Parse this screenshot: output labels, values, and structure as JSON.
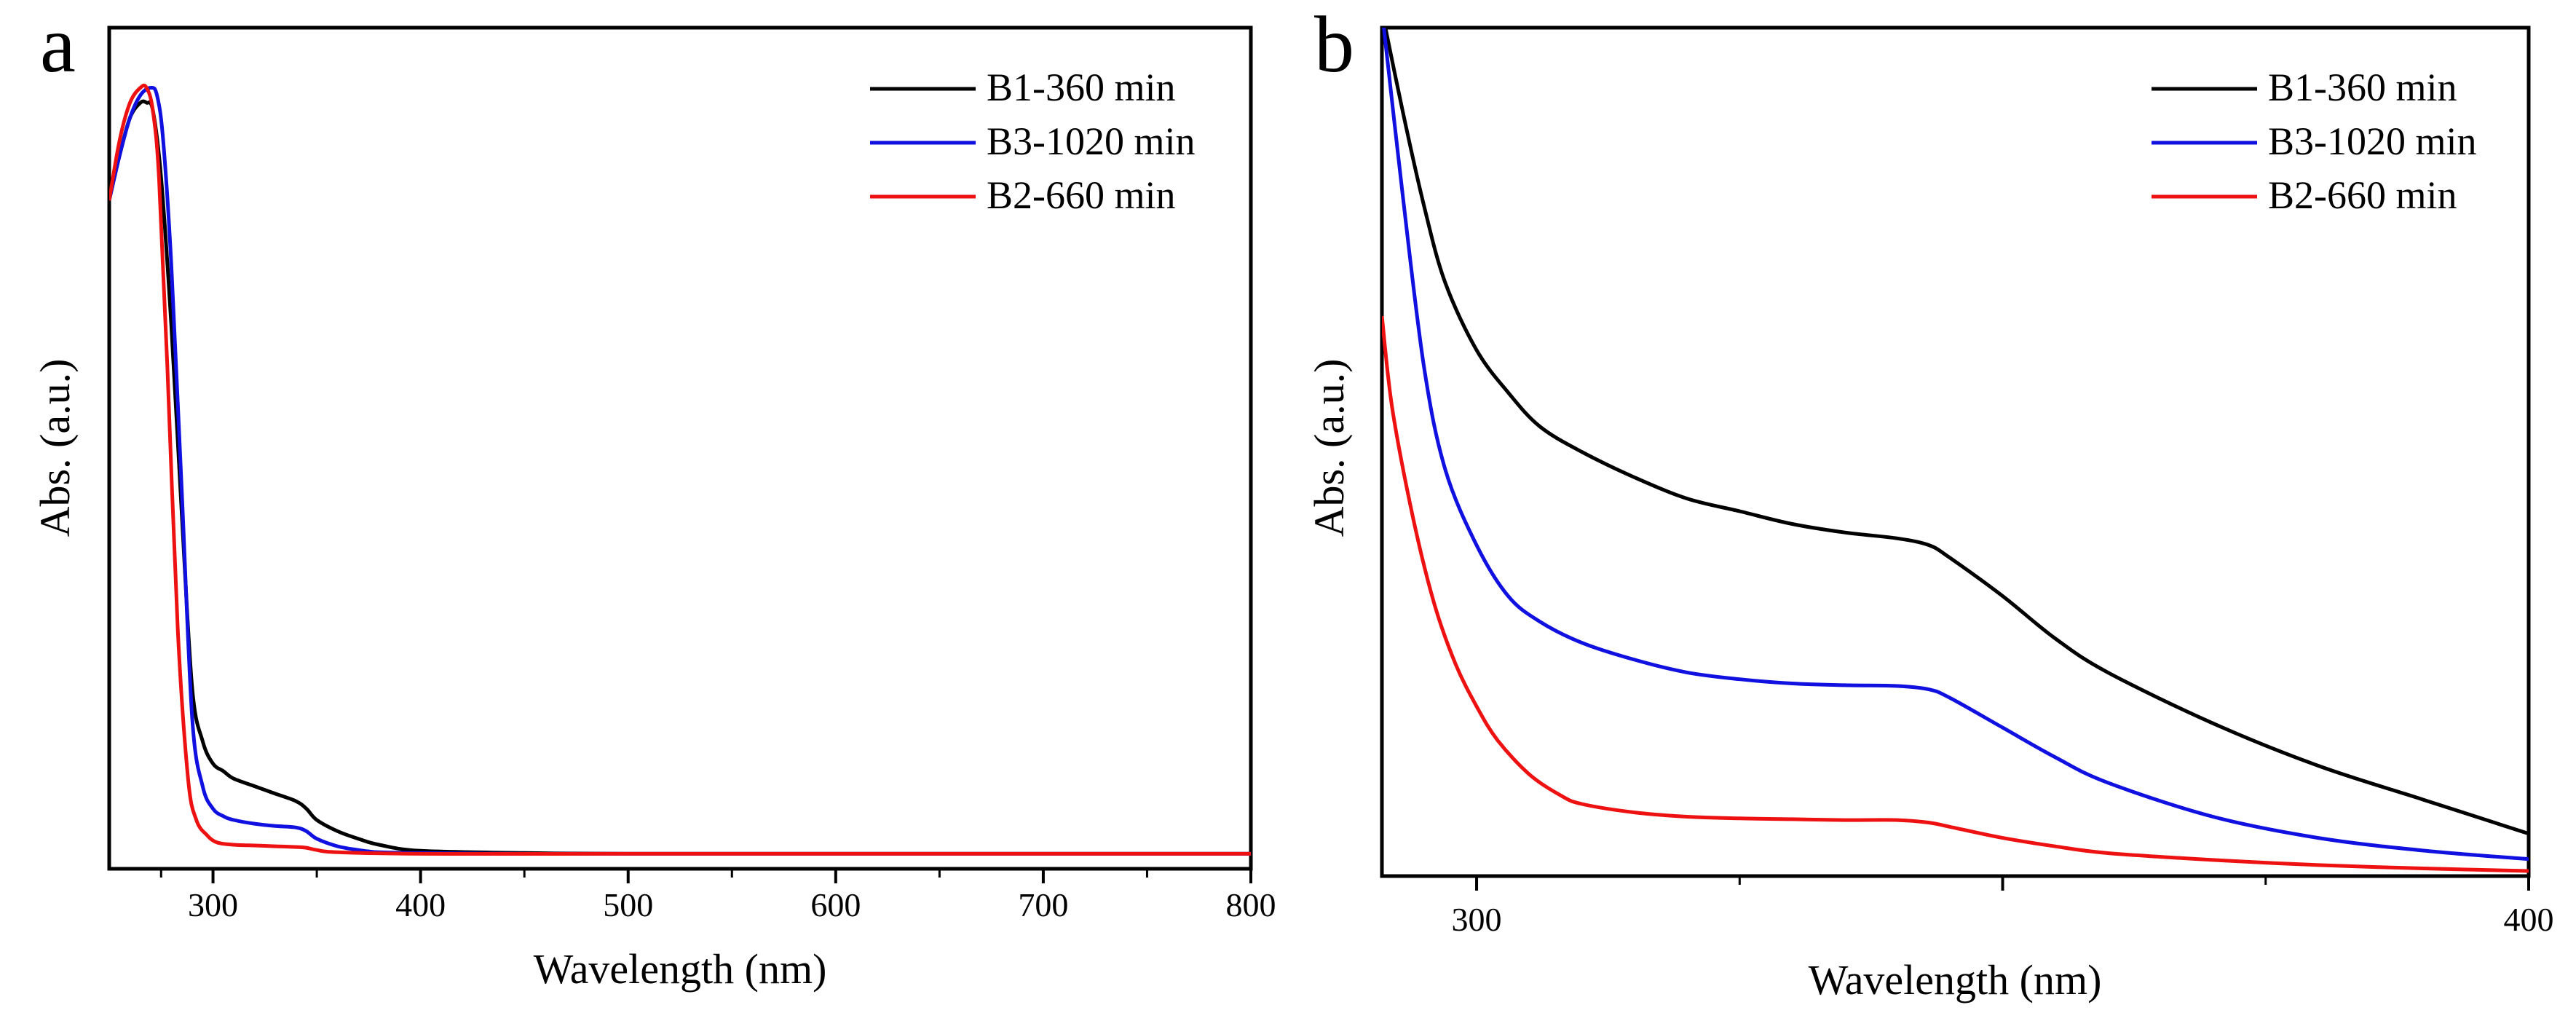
{
  "colors": {
    "black": "#000000",
    "blue": "#1010e0",
    "red": "#ee1111"
  },
  "chart_data": [
    {
      "panel": "a",
      "type": "line",
      "xlabel": "Wavelength (nm)",
      "ylabel": "Abs. (a.u.)",
      "xlim": [
        250,
        800
      ],
      "ylim": [
        -0.02,
        1.1
      ],
      "xticks": [
        300,
        400,
        500,
        600,
        700,
        800
      ],
      "xtick_labels": [
        "300",
        "400",
        "500",
        "600",
        "700",
        "800"
      ],
      "legend_position": "top-right",
      "series": [
        {
          "name": "B1-360 min",
          "color": "#000000",
          "x": [
            250,
            255,
            260,
            265,
            268,
            271,
            275,
            280,
            285,
            290,
            295,
            300,
            305,
            310,
            320,
            330,
            340,
            345,
            350,
            360,
            370,
            380,
            400,
            450,
            500,
            600,
            700,
            800
          ],
          "y": [
            0.87,
            0.93,
            0.98,
            1.0,
            1.0,
            0.99,
            0.9,
            0.7,
            0.45,
            0.22,
            0.15,
            0.12,
            0.11,
            0.1,
            0.09,
            0.08,
            0.07,
            0.06,
            0.045,
            0.03,
            0.02,
            0.012,
            0.004,
            0.001,
            0.0,
            0.0,
            0.0,
            0.0
          ]
        },
        {
          "name": "B3-1020 min",
          "color": "#1010e0",
          "x": [
            250,
            255,
            260,
            265,
            270,
            273,
            276,
            280,
            285,
            290,
            295,
            300,
            305,
            310,
            320,
            330,
            340,
            345,
            350,
            360,
            370,
            380,
            400,
            450,
            500,
            800
          ],
          "y": [
            0.87,
            0.93,
            0.98,
            1.01,
            1.02,
            1.01,
            0.95,
            0.78,
            0.48,
            0.18,
            0.09,
            0.06,
            0.05,
            0.045,
            0.04,
            0.037,
            0.035,
            0.03,
            0.02,
            0.01,
            0.005,
            0.002,
            0.001,
            0.0,
            0.0,
            0.0
          ]
        },
        {
          "name": "B2-660 min",
          "color": "#ee1111",
          "x": [
            250,
            255,
            260,
            265,
            268,
            271,
            274,
            278,
            283,
            288,
            292,
            297,
            302,
            310,
            320,
            330,
            340,
            345,
            350,
            360,
            400,
            500,
            800
          ],
          "y": [
            0.87,
            0.95,
            1.0,
            1.02,
            1.02,
            0.99,
            0.9,
            0.65,
            0.3,
            0.1,
            0.045,
            0.025,
            0.015,
            0.012,
            0.011,
            0.01,
            0.009,
            0.008,
            0.005,
            0.002,
            0.0,
            0.0,
            0.0
          ]
        }
      ]
    },
    {
      "panel": "b",
      "type": "line",
      "xlabel": "Wavelength (nm)",
      "ylabel": "Abs. (a.u.)",
      "xlim": [
        291,
        400
      ],
      "ylim": [
        0.0,
        1.0
      ],
      "xticks": [
        300,
        350,
        400
      ],
      "xtick_labels": [
        "300",
        "",
        "400"
      ],
      "legend_position": "top-right",
      "series": [
        {
          "name": "B1-360 min",
          "color": "#000000",
          "x": [
            291,
            293,
            295,
            297,
            300,
            303,
            306,
            310,
            315,
            320,
            325,
            330,
            335,
            340,
            343,
            345,
            350,
            355,
            360,
            370,
            380,
            390,
            400
          ],
          "y": [
            1.02,
            0.9,
            0.79,
            0.7,
            0.62,
            0.57,
            0.53,
            0.5,
            0.47,
            0.445,
            0.43,
            0.415,
            0.405,
            0.398,
            0.39,
            0.375,
            0.33,
            0.28,
            0.24,
            0.18,
            0.13,
            0.09,
            0.05
          ]
        },
        {
          "name": "B3-1020 min",
          "color": "#1010e0",
          "x": [
            291,
            293,
            295,
            297,
            300,
            303,
            306,
            310,
            315,
            320,
            325,
            330,
            335,
            340,
            343,
            345,
            350,
            355,
            360,
            370,
            380,
            390,
            400
          ],
          "y": [
            1.02,
            0.8,
            0.6,
            0.48,
            0.39,
            0.33,
            0.3,
            0.275,
            0.255,
            0.24,
            0.232,
            0.227,
            0.225,
            0.224,
            0.22,
            0.21,
            0.175,
            0.14,
            0.11,
            0.07,
            0.045,
            0.03,
            0.02
          ]
        },
        {
          "name": "B2-660 min",
          "color": "#ee1111",
          "x": [
            291,
            292,
            294,
            296,
            298,
            300,
            302,
            305,
            308,
            310,
            315,
            320,
            325,
            330,
            335,
            340,
            343,
            345,
            350,
            355,
            360,
            370,
            380,
            390,
            400
          ],
          "y": [
            0.66,
            0.55,
            0.42,
            0.32,
            0.25,
            0.2,
            0.16,
            0.12,
            0.095,
            0.085,
            0.075,
            0.07,
            0.068,
            0.067,
            0.066,
            0.066,
            0.063,
            0.058,
            0.045,
            0.035,
            0.027,
            0.019,
            0.013,
            0.009,
            0.006
          ]
        }
      ]
    }
  ]
}
